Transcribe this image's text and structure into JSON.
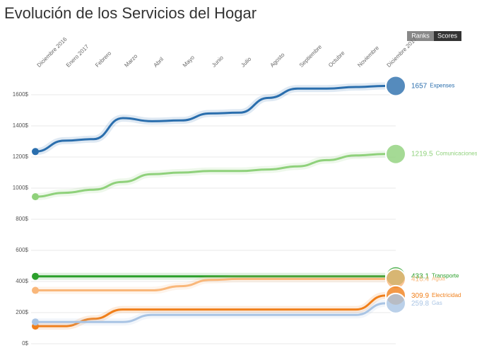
{
  "chart_data": {
    "type": "line",
    "title": "Evolución de los Servicios del Hogar",
    "buttons": [
      "Ranks",
      "Scores"
    ],
    "categories": [
      "Diciembre 2016",
      "Enero 2017",
      "Febrero",
      "Marzo",
      "Abril",
      "Mayo",
      "Junio",
      "Julio",
      "Agosto",
      "Septiembre",
      "Octubre",
      "Noviembre",
      "Diciembre 2017"
    ],
    "series": [
      {
        "name": "Expenses",
        "color": "#2a6ead",
        "values": [
          1235,
          1305,
          1315,
          1450,
          1430,
          1435,
          1480,
          1485,
          1580,
          1640,
          1640,
          1650,
          1657
        ]
      },
      {
        "name": "Comunicaciones",
        "color": "#8fd17b",
        "values": [
          945,
          970,
          990,
          1040,
          1090,
          1100,
          1110,
          1110,
          1120,
          1140,
          1180,
          1210,
          1219.5
        ]
      },
      {
        "name": "Transporte",
        "color": "#2ca02c",
        "values": [
          433.1,
          433.1,
          433.1,
          433.1,
          433.1,
          433.1,
          433.1,
          433.1,
          433.1,
          433.1,
          433.1,
          433.1,
          433.1
        ]
      },
      {
        "name": "Agua",
        "color": "#f9b77a",
        "values": [
          343,
          343,
          343,
          343,
          343,
          370,
          410,
          416.4,
          416.4,
          416.4,
          416.4,
          416.4,
          416.4
        ]
      },
      {
        "name": "Electricidad",
        "color": "#f07f1a",
        "values": [
          113,
          113,
          160,
          220,
          220,
          220,
          220,
          220,
          220,
          220,
          220,
          220,
          309.9
        ]
      },
      {
        "name": "Gas",
        "color": "#a9c4e4",
        "values": [
          140,
          140,
          140,
          140,
          185,
          185,
          185,
          185,
          185,
          185,
          185,
          185,
          259.8
        ]
      }
    ],
    "ylim": [
      0,
      1650
    ],
    "yticks": [
      {
        "value": 0,
        "label": "0$"
      },
      {
        "value": 200,
        "label": "200$"
      },
      {
        "value": 400,
        "label": "400$"
      },
      {
        "value": 600,
        "label": "600$"
      },
      {
        "value": 800,
        "label": "800$"
      },
      {
        "value": 1000,
        "label": "1000$"
      },
      {
        "value": 1200,
        "label": "1200$"
      },
      {
        "value": 1400,
        "label": "1400$"
      },
      {
        "value": 1600,
        "label": "1600$"
      }
    ],
    "grid": true
  }
}
